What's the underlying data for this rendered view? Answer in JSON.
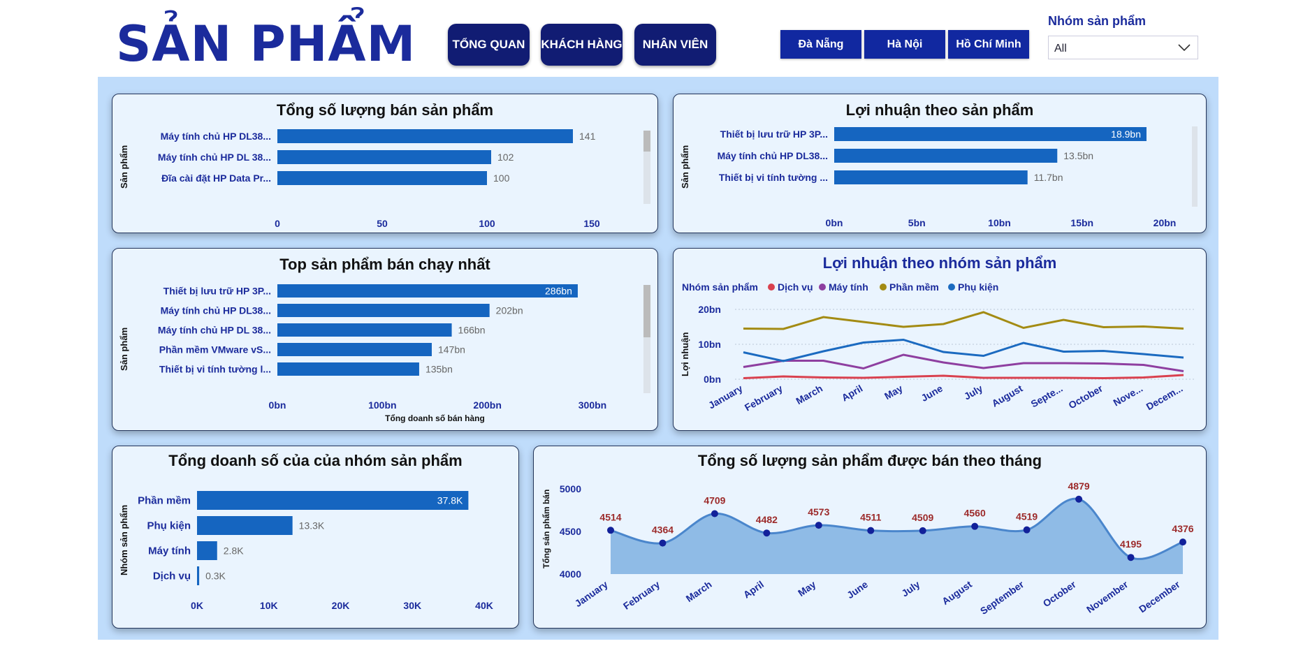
{
  "header": {
    "title": "SẢN PHẨM",
    "nav": [
      "TỔNG QUAN",
      "KHÁCH HÀNG",
      "NHÂN VIÊN"
    ],
    "cities": [
      "Đà Nẵng",
      "Hà Nội",
      "Hồ Chí Minh"
    ],
    "slicer_label": "Nhóm sản phẩm",
    "slicer_value": "All"
  },
  "colors": {
    "bar": "#1565c0",
    "dark_navy": "#111c73",
    "label_red": "#9c2a2a",
    "dich_vu": "#d9414f",
    "may_tinh": "#8e3fa0",
    "phan_mem": "#a38b13",
    "phu_kien": "#1b6ac0",
    "area": "#8fbbe6",
    "line": "#4a86cc"
  },
  "chart_data": [
    {
      "type": "bar",
      "title": "Tổng số lượng bán sản phẩm",
      "ylabel": "Sản phẩm",
      "categories": [
        "Máy tính chủ HP DL38...",
        "Máy tính chủ HP DL 38...",
        "Đĩa cài đặt HP Data Pr..."
      ],
      "values": [
        141,
        102,
        100
      ],
      "labels": [
        "141",
        "102",
        "100"
      ],
      "ticks": [
        "0",
        "50",
        "100",
        "150"
      ],
      "xlim": [
        0,
        155
      ]
    },
    {
      "type": "bar",
      "title": "Lợi nhuận theo sản phẩm",
      "ylabel": "Sản phẩm",
      "categories": [
        "Thiết bị lưu trữ HP 3P...",
        "Máy tính chủ HP DL38...",
        "Thiết bị vi tính tường ..."
      ],
      "values": [
        18.9,
        13.5,
        11.7
      ],
      "labels": [
        "18.9bn",
        "13.5bn",
        "11.7bn"
      ],
      "ticks": [
        "0bn",
        "5bn",
        "10bn",
        "15bn",
        "20bn"
      ],
      "xlim": [
        0,
        20
      ]
    },
    {
      "type": "bar",
      "title": "Top sản phẩm bán chạy nhất",
      "ylabel": "Sản phẩm",
      "xlabel": "Tổng doanh số bán hàng",
      "categories": [
        "Thiết bị lưu trữ HP 3P...",
        "Máy tính chủ HP DL38...",
        "Máy tính chủ HP DL 38...",
        "Phần mềm VMware vS...",
        "Thiết bị vi tính tường l..."
      ],
      "values": [
        286,
        202,
        166,
        147,
        135
      ],
      "labels": [
        "286bn",
        "202bn",
        "166bn",
        "147bn",
        "135bn"
      ],
      "ticks": [
        "0bn",
        "100bn",
        "200bn",
        "300bn"
      ],
      "xlim": [
        0,
        300
      ]
    },
    {
      "type": "line",
      "title": "Lợi nhuận theo nhóm sản phẩm",
      "ylabel": "Lợi nhuận",
      "legend_title": "Nhóm sản phẩm",
      "categories": [
        "January",
        "February",
        "March",
        "April",
        "May",
        "June",
        "July",
        "August",
        "Septe...",
        "October",
        "Nove...",
        "Decem..."
      ],
      "ticks": [
        "0bn",
        "10bn",
        "20bn"
      ],
      "ylim": [
        0,
        20
      ],
      "series": [
        {
          "name": "Dịch vụ",
          "values": [
            0.3,
            0.8,
            0.5,
            0.4,
            0.7,
            1.0,
            0.4,
            0.4,
            0.4,
            0.3,
            0.5,
            1.2
          ]
        },
        {
          "name": "Máy tính",
          "values": [
            3.5,
            5.3,
            5.3,
            3.1,
            7.0,
            4.8,
            3.2,
            4.6,
            4.6,
            4.5,
            4.1,
            2.3
          ]
        },
        {
          "name": "Phần mềm",
          "values": [
            14.5,
            14.4,
            17.8,
            16.4,
            15.0,
            15.8,
            19.2,
            14.7,
            17.0,
            14.9,
            15.1,
            14.5
          ]
        },
        {
          "name": "Phụ kiện",
          "values": [
            7.7,
            5.2,
            8.0,
            10.5,
            11.3,
            7.8,
            6.7,
            10.4,
            7.9,
            8.1,
            7.2,
            6.2
          ]
        }
      ]
    },
    {
      "type": "bar",
      "title": "Tổng doanh số của của nhóm sản phẩm",
      "ylabel": "Nhóm sản phẩm",
      "categories": [
        "Phần mềm",
        "Phụ kiện",
        "Máy tính",
        "Dịch vụ"
      ],
      "values": [
        37.8,
        13.3,
        2.8,
        0.3
      ],
      "labels": [
        "37.8K",
        "13.3K",
        "2.8K",
        "0.3K"
      ],
      "ticks": [
        "0K",
        "10K",
        "20K",
        "30K",
        "40K"
      ],
      "xlim": [
        0,
        40
      ]
    },
    {
      "type": "area",
      "title": "Tổng số lượng sản phẩm được bán theo tháng",
      "ylabel": "Tổng sản phẩm bán",
      "categories": [
        "January",
        "February",
        "March",
        "April",
        "May",
        "June",
        "July",
        "August",
        "September",
        "October",
        "November",
        "December"
      ],
      "values": [
        4514,
        4364,
        4709,
        4482,
        4573,
        4511,
        4509,
        4560,
        4519,
        4879,
        4195,
        4376
      ],
      "ticks": [
        "4000",
        "4500",
        "5000"
      ],
      "ylim": [
        4000,
        5000
      ]
    }
  ]
}
